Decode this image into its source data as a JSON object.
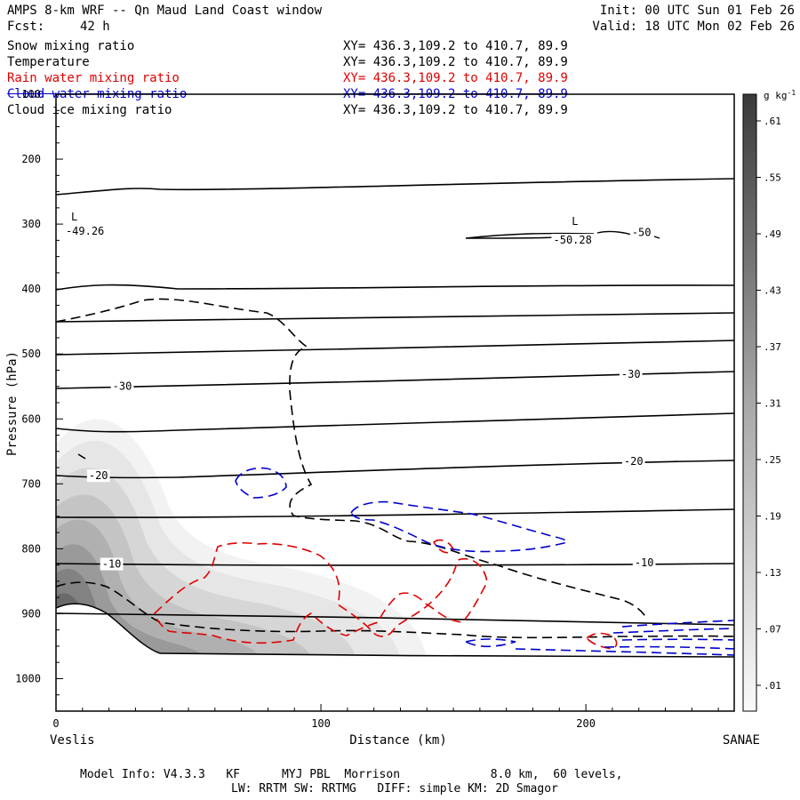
{
  "header": {
    "title": "AMPS 8-km WRF -- Qn Maud Land Coast window",
    "init": "Init: 00 UTC Sun 01 Feb 26",
    "fcst_label": "Fcst:",
    "fcst_value": "42 h",
    "valid": "Valid: 18 UTC Mon 02 Feb 26"
  },
  "legend": [
    {
      "name": "Snow mixing ratio",
      "xy": "XY= 436.3,109.2 to 410.7, 89.9",
      "color": "#000000"
    },
    {
      "name": "Temperature",
      "xy": "XY= 436.3,109.2 to 410.7, 89.9",
      "color": "#000000"
    },
    {
      "name": "Rain water mixing ratio",
      "xy": "XY= 436.3,109.2 to 410.7, 89.9",
      "color": "#e00000"
    },
    {
      "name": "Cloud water mixing ratio",
      "xy": "XY= 436.3,109.2 to 410.7, 89.9",
      "color": "#0000cc"
    },
    {
      "name": "Cloud ice mixing ratio",
      "xy": "XY= 436.3,109.2 to 410.7, 89.9",
      "color": "#000000"
    }
  ],
  "footer": {
    "model_info": "Model Info: V4.3.3   KF      MYJ PBL  Morrison             8.0 km,  60 levels,",
    "model_info2": "LW: RRTM SW: RRTMG   DIFF: simple KM: 2D Smagor"
  },
  "chart_data": {
    "type": "cross-section",
    "xlabel": "Distance (km)",
    "ylabel": "Pressure (hPa)",
    "x_range": [
      0,
      256
    ],
    "y_range": [
      100,
      1050
    ],
    "x_ticks": [
      0,
      100,
      200
    ],
    "y_ticks": [
      100,
      200,
      300,
      400,
      500,
      600,
      700,
      800,
      900,
      1000
    ],
    "x_endpoint_labels": {
      "left": "Veslis",
      "right": "SANAE"
    },
    "colorbar": {
      "unit": "g kg",
      "unit_exp": "-1",
      "ticks": [
        ".01",
        ".07",
        ".13",
        ".19",
        ".25",
        ".31",
        ".37",
        ".43",
        ".49",
        ".55",
        ".61"
      ]
    },
    "temperature_labels": [
      {
        "text": "-30",
        "x": 25,
        "p": 555
      },
      {
        "text": "-30",
        "x": 217,
        "p": 537
      },
      {
        "text": "-20",
        "x": 16,
        "p": 693
      },
      {
        "text": "-20",
        "x": 218,
        "p": 671
      },
      {
        "text": "-10",
        "x": 21,
        "p": 829
      },
      {
        "text": "-10",
        "x": 222,
        "p": 827
      },
      {
        "text": "-50",
        "x": 221,
        "p": 318
      },
      {
        "text": "-50.28",
        "x": 195,
        "p": 330
      }
    ],
    "extrema": [
      {
        "symbol": "L",
        "value": "-49.26",
        "x": 3,
        "p": 305
      },
      {
        "symbol": "L",
        "value": "-50.28",
        "x": 192,
        "p": 312
      }
    ]
  }
}
